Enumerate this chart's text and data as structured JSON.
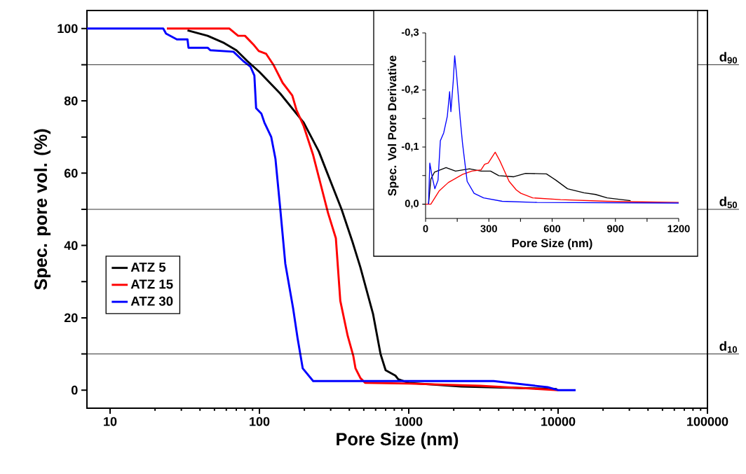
{
  "chart_data": [
    {
      "type": "line",
      "xlabel": "Pore Size (nm)",
      "ylabel": "Spec. pore vol. (%)",
      "log": "x",
      "legend": "left",
      "xlim": [
        7,
        100000
      ],
      "xticks": [
        10,
        100,
        1000,
        10000,
        100000
      ],
      "ylim": [
        -5,
        105
      ],
      "yticks": [
        0,
        {
          "value": 10,
          "label": null
        },
        20,
        {
          "value": 30,
          "label": null
        },
        40,
        {
          "value": 50,
          "label": null
        },
        60,
        {
          "value": 70,
          "label": null
        },
        80,
        {
          "value": 90,
          "label": null
        },
        100
      ],
      "ref_lines": [
        {
          "axis": "y",
          "value": 90,
          "label": "d$_{90}$"
        },
        {
          "axis": "y",
          "value": 50,
          "label": "d$_{50}$"
        },
        {
          "axis": "y",
          "value": 10,
          "label": "d$_{10}$"
        }
      ],
      "series": [
        {
          "name": "ATZ 5",
          "color": "#000000",
          "x": [
            33,
            45,
            58,
            70,
            83,
            100,
            138,
            198,
            250,
            285,
            355,
            420,
            474,
            577,
            647,
            700,
            814,
            850,
            1000,
            2240,
            9800
          ],
          "values": [
            99.5,
            98,
            96,
            94,
            91,
            88,
            82,
            74,
            66,
            60,
            50,
            41,
            34,
            21,
            10,
            5.5,
            4,
            3,
            2,
            1,
            0.3
          ]
        },
        {
          "name": "ATZ 15",
          "color": "#ff0000",
          "x": [
            24,
            63,
            72,
            80,
            92,
            99,
            111,
            124,
            143,
            166,
            177,
            198,
            229,
            255,
            288,
            325,
            348,
            390,
            425,
            440,
            475,
            510,
            1000,
            3000,
            10000
          ],
          "values": [
            100,
            100,
            98,
            98,
            95.4,
            93.8,
            93,
            90,
            85,
            81.5,
            77.5,
            73,
            65,
            57.5,
            49,
            42,
            24.7,
            15,
            9.5,
            6,
            3.3,
            2,
            1.8,
            1.2,
            0
          ]
        },
        {
          "name": "ATZ 30",
          "color": "#0000ff",
          "x": [
            7,
            22.7,
            23.7,
            28,
            33,
            33.5,
            45,
            47,
            67,
            78,
            87,
            92.5,
            95,
            103,
            108,
            120,
            128,
            138,
            149,
            168,
            180,
            195,
            229,
            3700,
            8500,
            10000,
            13100
          ],
          "values": [
            100,
            100,
            98.6,
            97,
            97,
            94.7,
            94.7,
            94,
            93.6,
            91,
            89.5,
            87,
            78,
            76.5,
            74,
            70,
            64,
            50,
            35,
            22.7,
            14.4,
            6,
            2.5,
            2.5,
            0.8,
            0,
            0
          ]
        }
      ]
    },
    {
      "type": "line",
      "xlabel": "Pore Size (nm)",
      "ylabel": "Spec. Vol Pore Derivative",
      "xlim": [
        0,
        1200
      ],
      "xticks": [
        0,
        {
          "value": 150,
          "label": null
        },
        300,
        {
          "value": 450,
          "label": null
        },
        600,
        {
          "value": 750,
          "label": null
        },
        900,
        {
          "value": 1050,
          "label": null
        },
        1200
      ],
      "ylim": [
        0.025,
        -0.3
      ],
      "yticks": [
        {
          "value": 0,
          "label": "0,0"
        },
        {
          "value": -0.05,
          "label": null
        },
        {
          "value": -0.1,
          "label": "-0,1"
        },
        {
          "value": -0.15,
          "label": null
        },
        {
          "value": -0.2,
          "label": "-0,2"
        },
        {
          "value": -0.25,
          "label": null
        },
        {
          "value": -0.3,
          "label": "-0,3"
        }
      ],
      "series": [
        {
          "color": "#000000",
          "x": [
            14,
            25,
            42,
            97,
            142,
            208,
            263,
            308,
            347,
            418,
            474,
            573,
            618,
            673,
            751,
            806,
            861,
            972
          ],
          "values": [
            0,
            -0.044,
            -0.056,
            -0.064,
            -0.058,
            -0.062,
            -0.058,
            -0.058,
            -0.05,
            -0.048,
            -0.054,
            -0.053,
            -0.042,
            -0.027,
            -0.02,
            -0.017,
            -0.011,
            -0.006
          ]
        },
        {
          "color": "#ff0000",
          "x": [
            0,
            25,
            64,
            108,
            175,
            219,
            263,
            280,
            297,
            330,
            352,
            396,
            430,
            452,
            508,
            640,
            861,
            1200
          ],
          "values": [
            0,
            0,
            -0.023,
            -0.038,
            -0.052,
            -0.058,
            -0.06,
            -0.07,
            -0.072,
            -0.091,
            -0.076,
            -0.04,
            -0.025,
            -0.019,
            -0.011,
            -0.008,
            -0.005,
            -0.003
          ]
        },
        {
          "color": "#0000ff",
          "x": [
            14,
            20,
            31,
            44,
            59,
            70,
            86,
            103,
            114,
            120,
            131,
            138,
            147,
            164,
            175,
            197,
            230,
            275,
            363,
            529,
            1200
          ],
          "values": [
            0,
            -0.072,
            -0.048,
            -0.027,
            -0.042,
            -0.111,
            -0.125,
            -0.154,
            -0.197,
            -0.162,
            -0.215,
            -0.26,
            -0.227,
            -0.15,
            -0.107,
            -0.04,
            -0.019,
            -0.011,
            -0.005,
            -0.003,
            -0.002
          ]
        }
      ]
    }
  ]
}
